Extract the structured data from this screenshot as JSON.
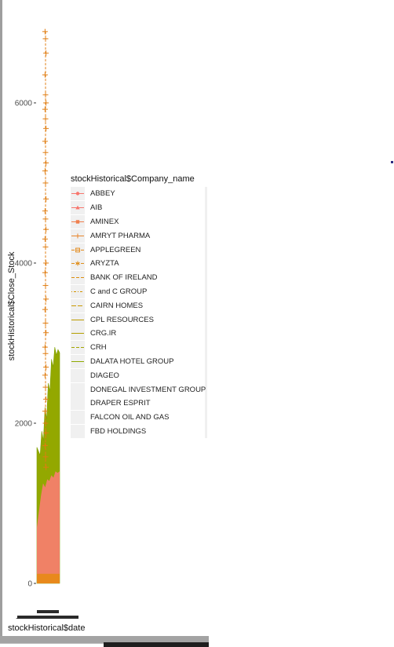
{
  "chart_data": {
    "type": "line",
    "title": "",
    "xlabel": "stockHistorical$date",
    "ylabel": "stockHistorical$Close_Stock",
    "ylim": [
      0,
      7000
    ],
    "y_ticks": [
      "0",
      "2000",
      "4000",
      "6000"
    ],
    "grid": false,
    "legend_position": "right",
    "legend_title": "stockHistorical$Company_name",
    "series": [
      {
        "name": "ABBEY",
        "color": "#F8766D",
        "marker": "circle",
        "linetype": "solid"
      },
      {
        "name": "AIB",
        "color": "#F8766D",
        "marker": "triangle",
        "linetype": "solid"
      },
      {
        "name": "AMINEX",
        "color": "#F07F4E",
        "marker": "square",
        "linetype": "solid"
      },
      {
        "name": "AMRYT PHARMA",
        "color": "#E8852C",
        "marker": "plus",
        "linetype": "solid"
      },
      {
        "name": "APPLEGREEN",
        "color": "#E48A1B",
        "marker": "square-open",
        "linetype": "dashed"
      },
      {
        "name": "ARYZTA",
        "color": "#E08E1A",
        "marker": "asterisk",
        "linetype": "dashed"
      },
      {
        "name": "BANK OF IRELAND",
        "color": "#DB8E0E",
        "marker": "none",
        "linetype": "dashed"
      },
      {
        "name": "C and C GROUP",
        "color": "#D39200",
        "marker": "none",
        "linetype": "dotdash"
      },
      {
        "name": "CAIRN HOMES",
        "color": "#C99800",
        "marker": "none",
        "linetype": "longdash"
      },
      {
        "name": "CPL RESOURCES",
        "color": "#BD9C00",
        "marker": "none",
        "linetype": "solid"
      },
      {
        "name": "CRG.IR",
        "color": "#B39F00",
        "marker": "none",
        "linetype": "solid"
      },
      {
        "name": "CRH",
        "color": "#A3A500",
        "marker": "none",
        "linetype": "dashed"
      },
      {
        "name": "DALATA HOTEL GROUP",
        "color": "#8FA900",
        "marker": "none",
        "linetype": "solid"
      },
      {
        "name": "DIAGEO",
        "color": "#7CAE00",
        "marker": "none",
        "linetype": "blank"
      },
      {
        "name": "DONEGAL INVESTMENT GROUP",
        "color": "#6BB100",
        "marker": "none",
        "linetype": "blank"
      },
      {
        "name": "DRAPER ESPRIT",
        "color": "#53B400",
        "marker": "none",
        "linetype": "blank"
      },
      {
        "name": "FALCON OIL AND GAS",
        "color": "#39B600",
        "marker": "none",
        "linetype": "blank"
      },
      {
        "name": "FBD HOLDINGS",
        "color": "#00B81F",
        "marker": "none",
        "linetype": "blank"
      }
    ],
    "visible_traces": {
      "amryt_close_samples": [
        6890,
        6800,
        6620,
        6350,
        6100,
        6000,
        5920,
        5800,
        5680,
        5520,
        5380,
        5250,
        5150,
        5000,
        4800,
        4650,
        4550,
        4420,
        4300,
        4200,
        4000,
        3880,
        3720,
        3550,
        3420,
        3250,
        3130,
        2950,
        2870,
        2700,
        2600,
        2450,
        2300,
        2150,
        2000,
        1880,
        1720,
        1580,
        1450
      ],
      "green_band_max": [
        1700,
        1650,
        1600,
        1900,
        1780,
        2200,
        2050,
        2500,
        2400,
        2800,
        2700,
        2950,
        2850,
        2920,
        2880
      ],
      "red_band_max": [
        700,
        900,
        1100,
        1250,
        1200,
        1300,
        1280,
        1350,
        1320,
        1400,
        1380,
        1400
      ]
    }
  }
}
